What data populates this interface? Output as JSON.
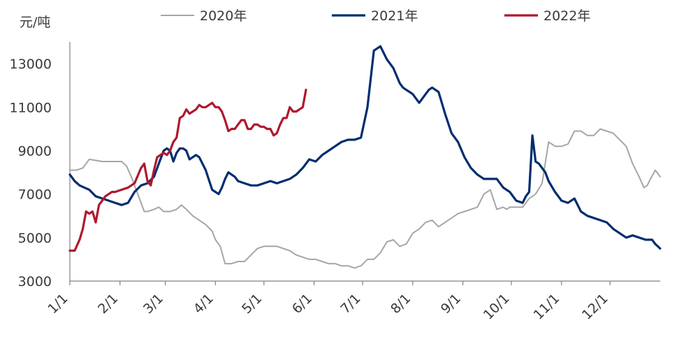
{
  "chart_data": {
    "type": "line",
    "title": "",
    "ylabel": "元/吨",
    "xlabel": "",
    "ylim": [
      3000,
      14000
    ],
    "yticks": [
      3000,
      5000,
      7000,
      9000,
      11000,
      13000
    ],
    "xlim": [
      0,
      365
    ],
    "xticks": [
      {
        "label": "1/1",
        "day": 0
      },
      {
        "label": "2/1",
        "day": 31
      },
      {
        "label": "3/1",
        "day": 59
      },
      {
        "label": "4/1",
        "day": 90
      },
      {
        "label": "5/1",
        "day": 120
      },
      {
        "label": "6/1",
        "day": 151
      },
      {
        "label": "7/1",
        "day": 181
      },
      {
        "label": "8/1",
        "day": 212
      },
      {
        "label": "9/1",
        "day": 243
      },
      {
        "label": "10/1",
        "day": 273
      },
      {
        "label": "11/1",
        "day": 304
      },
      {
        "label": "12/1",
        "day": 334
      }
    ],
    "grid": false,
    "legend_position": "top",
    "series": [
      {
        "name": "2020年",
        "color": "#a6a6a6",
        "x": [
          0,
          4,
          8,
          12,
          20,
          30,
          32,
          35,
          38,
          41,
          44,
          46,
          48,
          52,
          55,
          58,
          62,
          66,
          69,
          72,
          76,
          80,
          84,
          88,
          90,
          93,
          96,
          100,
          104,
          108,
          112,
          116,
          120,
          124,
          128,
          132,
          136,
          140,
          144,
          148,
          152,
          156,
          160,
          164,
          168,
          172,
          176,
          180,
          184,
          188,
          192,
          196,
          200,
          204,
          208,
          212,
          216,
          220,
          224,
          228,
          232,
          236,
          240,
          244,
          248,
          252,
          256,
          260,
          264,
          268,
          270,
          272,
          276,
          280,
          284,
          288,
          292,
          296,
          300,
          304,
          308,
          312,
          316,
          320,
          324,
          328,
          332,
          336,
          340,
          344,
          348,
          352,
          355,
          357,
          359,
          362,
          365
        ],
        "values": [
          8100,
          8100,
          8200,
          8600,
          8500,
          8500,
          8500,
          8300,
          7800,
          7200,
          6600,
          6200,
          6200,
          6300,
          6400,
          6200,
          6200,
          6300,
          6500,
          6300,
          6000,
          5800,
          5600,
          5300,
          4900,
          4600,
          3800,
          3800,
          3900,
          3900,
          4200,
          4500,
          4600,
          4600,
          4600,
          4500,
          4400,
          4200,
          4100,
          4000,
          4000,
          3900,
          3800,
          3800,
          3700,
          3700,
          3600,
          3700,
          4000,
          4000,
          4300,
          4800,
          4900,
          4600,
          4700,
          5200,
          5400,
          5700,
          5800,
          5500,
          5700,
          5900,
          6100,
          6200,
          6300,
          6400,
          7000,
          7200,
          6300,
          6400,
          6300,
          6400,
          6400,
          6400,
          6800,
          7000,
          7500,
          9400,
          9200,
          9200,
          9300,
          9900,
          9900,
          9700,
          9700,
          10000,
          9900,
          9800,
          9500,
          9200,
          8400,
          7800,
          7300,
          7400,
          7700,
          8100,
          7800
        ]
      },
      {
        "name": "2021年",
        "color": "#002d6e",
        "x": [
          0,
          3,
          6,
          9,
          12,
          16,
          20,
          24,
          28,
          32,
          36,
          40,
          44,
          48,
          52,
          56,
          58,
          60,
          62,
          64,
          66,
          68,
          70,
          72,
          74,
          76,
          78,
          80,
          84,
          88,
          90,
          92,
          94,
          96,
          98,
          100,
          102,
          104,
          108,
          112,
          116,
          120,
          124,
          128,
          132,
          136,
          140,
          144,
          148,
          152,
          156,
          160,
          164,
          168,
          172,
          176,
          180,
          184,
          188,
          192,
          196,
          200,
          204,
          206,
          208,
          210,
          212,
          214,
          216,
          218,
          220,
          222,
          224,
          228,
          232,
          236,
          240,
          244,
          248,
          252,
          256,
          260,
          264,
          268,
          272,
          276,
          280,
          282,
          284,
          286,
          288,
          290,
          292,
          294,
          296,
          300,
          304,
          308,
          312,
          316,
          320,
          324,
          328,
          332,
          336,
          340,
          344,
          348,
          352,
          356,
          360,
          362,
          365
        ],
        "values": [
          7900,
          7600,
          7400,
          7300,
          7200,
          6900,
          6800,
          6700,
          6600,
          6500,
          6600,
          7100,
          7400,
          7500,
          7800,
          8600,
          9000,
          9100,
          9000,
          8500,
          8900,
          9100,
          9100,
          9000,
          8600,
          8700,
          8800,
          8700,
          8100,
          7200,
          7100,
          7000,
          7300,
          7700,
          8000,
          7900,
          7800,
          7600,
          7500,
          7400,
          7400,
          7500,
          7600,
          7500,
          7600,
          7700,
          7900,
          8200,
          8600,
          8500,
          8800,
          9000,
          9200,
          9400,
          9500,
          9500,
          9600,
          11000,
          13600,
          13800,
          13200,
          12800,
          12100,
          11900,
          11800,
          11700,
          11600,
          11400,
          11200,
          11400,
          11600,
          11800,
          11900,
          11700,
          10700,
          9800,
          9400,
          8700,
          8200,
          7900,
          7700,
          7700,
          7700,
          7300,
          7100,
          6700,
          6600,
          6900,
          7100,
          9700,
          8500,
          8400,
          8200,
          8000,
          7600,
          7100,
          6700,
          6600,
          6800,
          6200,
          6000,
          5900,
          5800,
          5700,
          5400,
          5200,
          5000,
          5100,
          5000,
          4900,
          4900,
          4700,
          4500
        ]
      },
      {
        "name": "2022年",
        "color": "#b0182e",
        "x": [
          0,
          3,
          6,
          8,
          10,
          12,
          14,
          16,
          18,
          20,
          22,
          24,
          26,
          28,
          32,
          36,
          40,
          44,
          46,
          48,
          50,
          52,
          54,
          56,
          58,
          60,
          62,
          64,
          66,
          68,
          70,
          72,
          74,
          76,
          78,
          80,
          82,
          84,
          86,
          88,
          90,
          92,
          94,
          96,
          98,
          100,
          102,
          104,
          106,
          108,
          110,
          112,
          114,
          116,
          118,
          120,
          122,
          124,
          126,
          128,
          130,
          132,
          134,
          136,
          138,
          140,
          142,
          144,
          146
        ],
        "values": [
          4400,
          4400,
          4900,
          5400,
          6200,
          6100,
          6200,
          5700,
          6500,
          6700,
          6900,
          7000,
          7100,
          7100,
          7200,
          7300,
          7500,
          8200,
          8400,
          7600,
          7400,
          8100,
          8700,
          8800,
          8900,
          8800,
          9000,
          9400,
          9600,
          10500,
          10600,
          10900,
          10700,
          10800,
          10900,
          11100,
          11000,
          11000,
          11100,
          11200,
          11000,
          11000,
          10800,
          10400,
          9900,
          10000,
          10000,
          10200,
          10400,
          10400,
          10000,
          10000,
          10200,
          10200,
          10100,
          10100,
          10000,
          10000,
          9700,
          9800,
          10200,
          10500,
          10500,
          11000,
          10800,
          10800,
          10900,
          11000,
          11800
        ]
      }
    ]
  }
}
